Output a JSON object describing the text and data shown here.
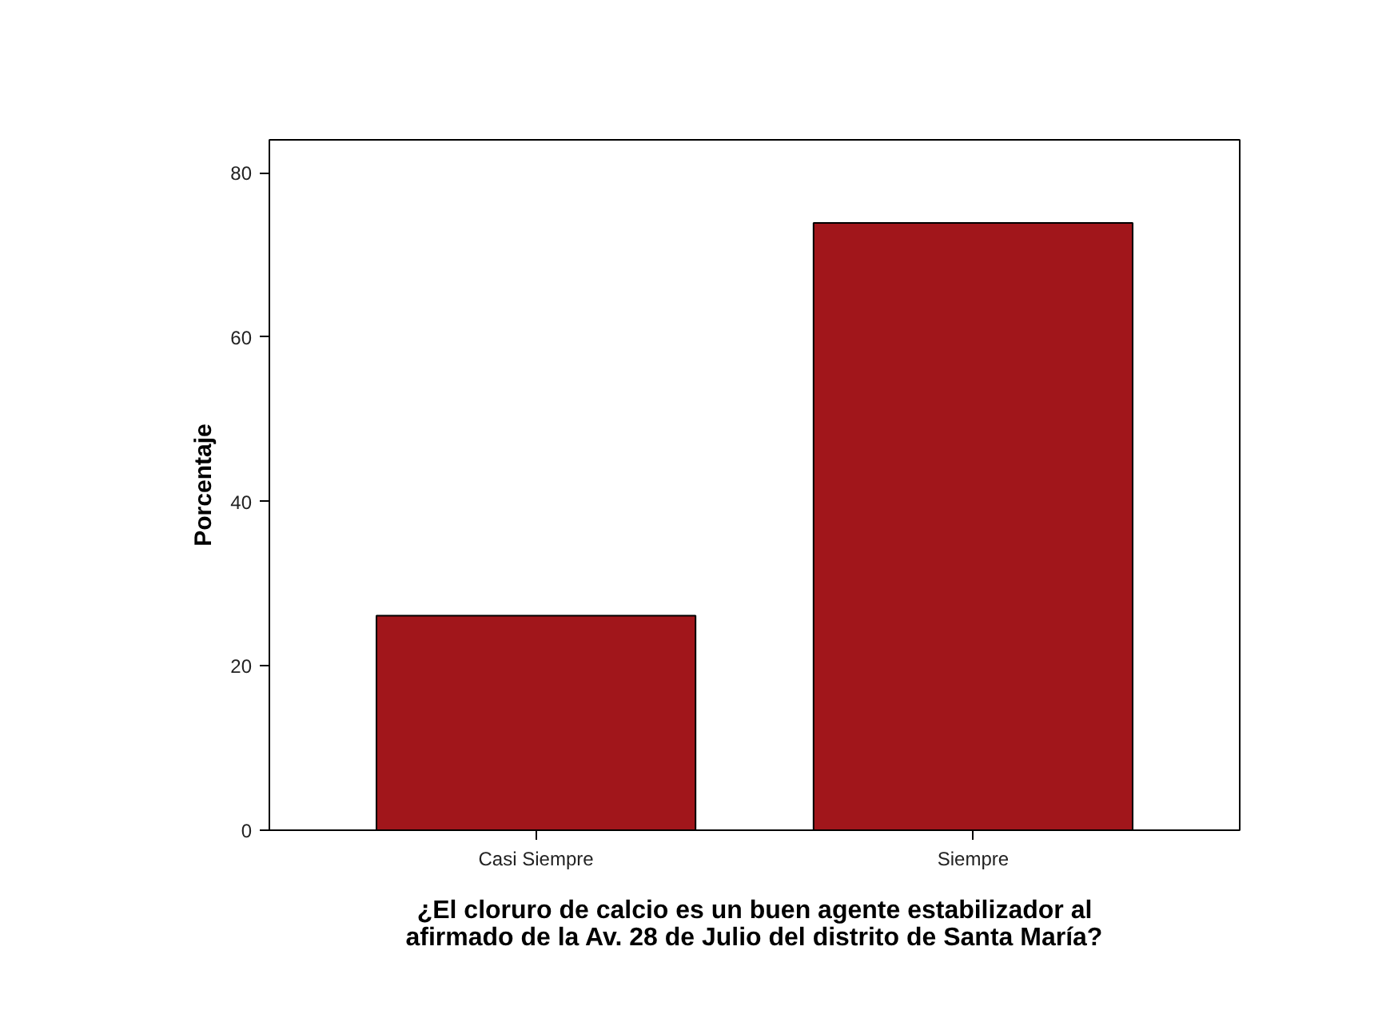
{
  "chart_data": {
    "type": "bar",
    "xlabel": "¿El cloruro de calcio es un buen agente estabilizador al afirmado de la Av. 28 de Julio del distrito de Santa María?",
    "ylabel": "Porcentaje",
    "categories": [
      "Casi Siempre",
      "Siempre"
    ],
    "values": [
      26.1,
      73.9
    ],
    "color": "#a1161b",
    "ylim": [
      0,
      84
    ],
    "yticks": [
      0,
      20,
      40,
      60,
      80
    ],
    "grid": false
  }
}
